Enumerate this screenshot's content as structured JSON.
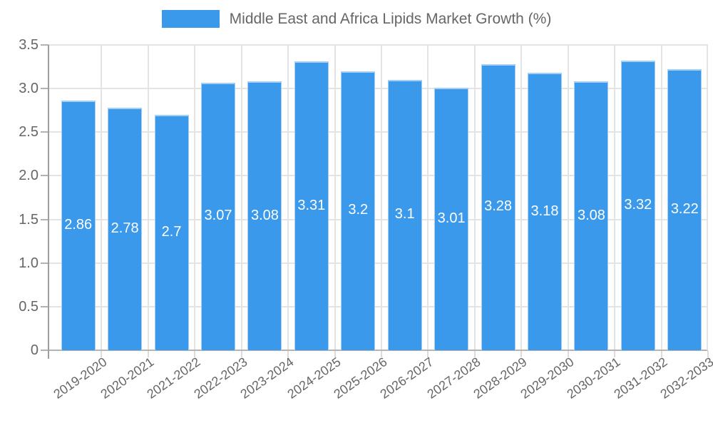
{
  "chart_data": {
    "type": "bar",
    "title": "Middle East and Africa Lipids Market Growth (%)",
    "xlabel": "",
    "ylabel": "",
    "legend_position": "top",
    "grid": true,
    "ylim": [
      0,
      3.5
    ],
    "categories": [
      "2019-2020",
      "2020-2021",
      "2021-2022",
      "2022-2023",
      "2023-2024",
      "2024-2025",
      "2025-2026",
      "2026-2027",
      "2027-2028",
      "2028-2029",
      "2029-2030",
      "2030-2031",
      "2031-2032",
      "2032-2033"
    ],
    "values": [
      2.86,
      2.78,
      2.7,
      3.07,
      3.08,
      3.31,
      3.2,
      3.1,
      3.01,
      3.28,
      3.18,
      3.08,
      3.32,
      3.22
    ],
    "bar_labels": [
      "2.86",
      "2.78",
      "2.7",
      "3.07",
      "3.08",
      "3.31",
      "3.2",
      "3.1",
      "3.01",
      "3.28",
      "3.18",
      "3.08",
      "3.32",
      "3.22"
    ],
    "yticks": [
      {
        "value": 0,
        "label": "0"
      },
      {
        "value": 0.5,
        "label": "0.5"
      },
      {
        "value": 1,
        "label": "1.0"
      },
      {
        "value": 1.5,
        "label": "1.5"
      },
      {
        "value": 2,
        "label": "2.0"
      },
      {
        "value": 2.5,
        "label": "2.5"
      },
      {
        "value": 3,
        "label": "3.0"
      },
      {
        "value": 3.5,
        "label": "3.5"
      }
    ],
    "colors": {
      "bar": "#3b99ec",
      "bar_edge": "#a5cff4",
      "grid": "#e4e4e4",
      "zero_line": "#b3b3b3",
      "axis_line": "#9e9e9e",
      "y_tick": "#b3b3b3",
      "x_tick": "#dcdcdc",
      "axis_text": "#666666",
      "value_label": "#ffffff"
    }
  }
}
